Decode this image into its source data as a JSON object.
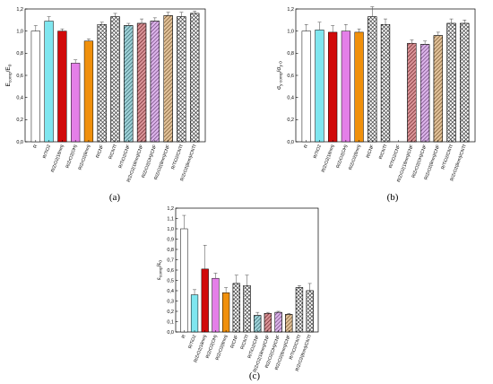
{
  "colors": {
    "R": "#ffffff",
    "R/TiO2": "#7fe6ef",
    "R/ZrO2(18nm)": "#d10a0a",
    "R/ZrO2(OH)": "#e47fe8",
    "R/ZrO2(8nm)": "#f0900c",
    "R/CNF": "#a0a0a0",
    "R/CNTf": "#8c8c8c",
    "R/TiO2/CNF": "#2f9fae",
    "R/ZrO2(18nm)/CNF": "#b0141c",
    "R/ZrO2(OH)/CNF": "#b45ad2",
    "R/ZrO2(8nm)/CNF": "#c07a22",
    "R/TiO2/CNTf": "#2f9fae",
    "R/ZrO2(8nm)/CNTf": "#c07a22"
  },
  "chart_data": [
    {
      "panel_label": "(a)",
      "type": "bar",
      "ylabel_main": "E",
      "ylabel_sub": "comp",
      "ylabel_tail": "/E",
      "ylabel_tail_sub": "0",
      "ylim": [
        0,
        1.2
      ],
      "yticks": [
        "0,0",
        "0,2",
        "0,4",
        "0,6",
        "0,8",
        "1,0",
        "1,2"
      ],
      "categories": [
        "R",
        "R/TiO2",
        "R/ZrO2(18nm)",
        "R/ZrO2(OH)",
        "R/ZrO2(8nm)",
        "R/CNF",
        "R/CNTf",
        "R/TiO2/CNF",
        "R/ZrO2(18nm)/CNF",
        "R/ZrO2(OH)/CNF",
        "R/ZrO2(8nm)/CNF",
        "R/TiO2/CNTf",
        "R/ZrO2(8nm)/CNTf"
      ],
      "values": [
        1.0,
        1.09,
        1.0,
        0.71,
        0.91,
        1.06,
        1.13,
        1.05,
        1.07,
        1.09,
        1.14,
        1.13,
        1.16
      ],
      "errors": [
        0.05,
        0.04,
        0.02,
        0.03,
        0.02,
        0.02,
        0.03,
        0.02,
        0.04,
        0.03,
        0.03,
        0.04,
        0.02
      ]
    },
    {
      "panel_label": "(b)",
      "type": "bar",
      "ylabel_main": "σ",
      "ylabel_sub": "y comp",
      "ylabel_tail": "/σ",
      "ylabel_tail_sub": "y 0",
      "ylim": [
        0,
        1.2
      ],
      "yticks": [
        "0,0",
        "0,2",
        "0,4",
        "0,6",
        "0,8",
        "1,0",
        "1,2"
      ],
      "categories": [
        "R",
        "R/TiO2",
        "R/ZrO2(18nm)",
        "R/ZrO2(OH)",
        "R/ZrO2(8nm)",
        "R/CNF",
        "R/CNTf",
        "R/TiO2/CNF",
        "R/ZrO2(18nm)/CNF",
        "R/ZrO2(OH)/CNF",
        "R/ZrO2(8nm)/CNF",
        "R/TiO2/CNTf",
        "R/ZrO2(8nm)/CNTf"
      ],
      "values": [
        1.0,
        1.01,
        0.99,
        1.0,
        0.99,
        1.13,
        1.06,
        0,
        0.89,
        0.88,
        0.96,
        1.07,
        1.07
      ],
      "errors": [
        0.06,
        0.07,
        0.06,
        0.06,
        0.03,
        0.09,
        0.05,
        0,
        0.03,
        0.03,
        0.03,
        0.04,
        0.03
      ]
    },
    {
      "panel_label": "(c)",
      "type": "bar",
      "ylabel_main": "ε",
      "ylabel_sub": "comp",
      "ylabel_tail": "/ε",
      "ylabel_tail_sub": "0",
      "ylim": [
        0,
        1.2
      ],
      "yticks": [
        "0,0",
        "0,1",
        "0,2",
        "0,3",
        "0,4",
        "0,5",
        "0,6",
        "0,7",
        "0,8",
        "0,9",
        "1,0",
        "1,1",
        "1,2"
      ],
      "categories": [
        "R",
        "R/TiO2",
        "R/ZrO2(18nm)",
        "R/ZrO2(OH)",
        "R/ZrO2(8nm)",
        "R/CNF",
        "R/CNTf",
        "R/TiO2/CNF",
        "R/ZrO2(18nm)/CNF",
        "R/ZrO2(OH)/CNF",
        "R/ZrO2(8nm)/CNF",
        "R/TiO2/CNTf",
        "R/ZrO2(8nm)/CNTf"
      ],
      "values": [
        1.0,
        0.36,
        0.61,
        0.52,
        0.38,
        0.47,
        0.45,
        0.16,
        0.18,
        0.19,
        0.17,
        0.43,
        0.4
      ],
      "errors": [
        0.13,
        0.05,
        0.23,
        0.05,
        0.05,
        0.08,
        0.1,
        0.03,
        0.01,
        0.01,
        0.01,
        0.02,
        0.07
      ]
    }
  ]
}
